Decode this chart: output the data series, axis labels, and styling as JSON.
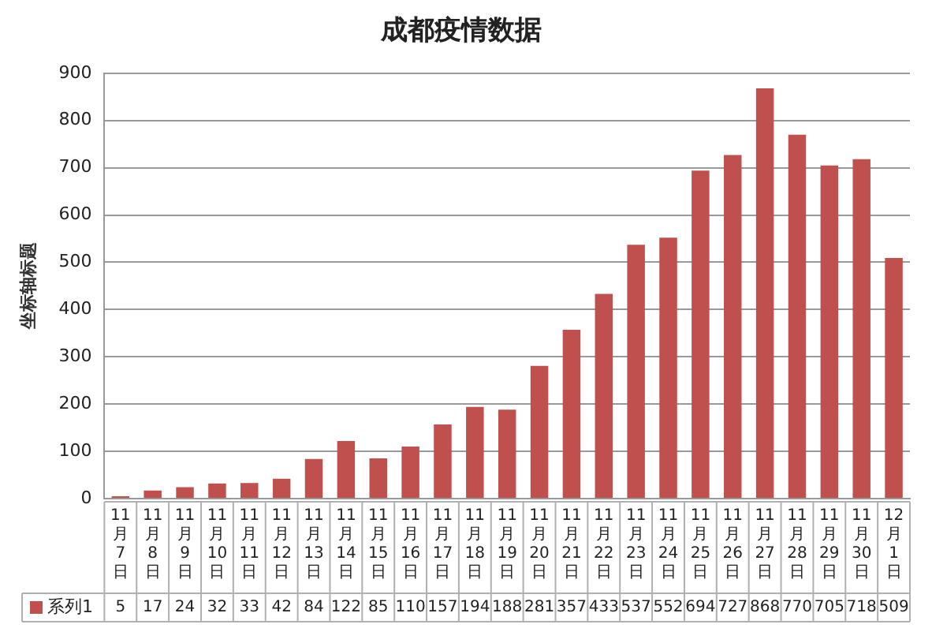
{
  "chart_data": {
    "type": "bar",
    "title": "成都疫情数据",
    "ylabel": "坐标轴标题",
    "categories": [
      "11月7日",
      "11月8日",
      "11月9日",
      "11月10日",
      "11月11日",
      "11月12日",
      "11月13日",
      "11月14日",
      "11月15日",
      "11月16日",
      "11月17日",
      "11月18日",
      "11月19日",
      "11月20日",
      "11月21日",
      "11月22日",
      "11月23日",
      "11月24日",
      "11月25日",
      "11月26日",
      "11月27日",
      "11月28日",
      "11月29日",
      "11月30日",
      "12月1日"
    ],
    "series": [
      {
        "name": "系列1",
        "color": "#c0504d",
        "values": [
          5,
          17,
          24,
          32,
          33,
          42,
          84,
          122,
          85,
          110,
          157,
          194,
          188,
          281,
          357,
          433,
          537,
          552,
          694,
          727,
          868,
          770,
          705,
          718,
          509
        ]
      }
    ],
    "ylim": [
      0,
      900
    ],
    "yticks": [
      0,
      100,
      200,
      300,
      400,
      500,
      600,
      700,
      800,
      900
    ],
    "grid": "y",
    "legend": "bottom",
    "data_labels": true
  }
}
